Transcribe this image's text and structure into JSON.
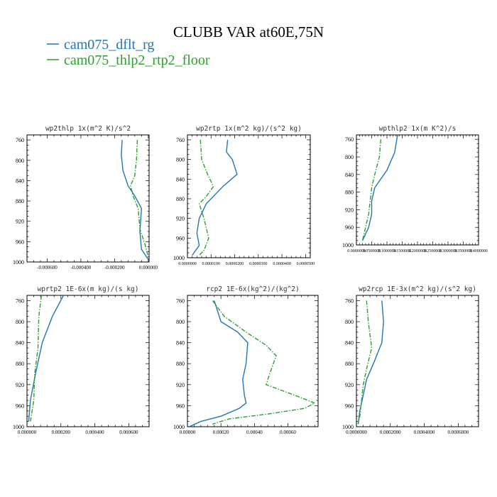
{
  "title": "CLUBB VAR at60E,75N",
  "legend": [
    {
      "name": "cam075_dflt_rg",
      "color": "#1f77b4",
      "style": "solid"
    },
    {
      "name": "cam075_thlp2_rtp2_floor",
      "color": "#2ca02c",
      "style": "dashdot"
    }
  ],
  "chart_data": [
    {
      "type": "line",
      "title": "wp2thlp   1x(m^2 K)/s^2",
      "ylim": [
        1000,
        750
      ],
      "yticks": [
        "760",
        "800",
        "840",
        "880",
        "920",
        "960",
        "1000"
      ],
      "xlim": [
        -0.00072,
        5e-06
      ],
      "xticks": [
        -0.0006,
        -0.0004,
        -0.0002,
        0.0
      ],
      "xtick_labels": [
        "-0.000600",
        "-0.000400",
        "-0.000200",
        "0.000000"
      ],
      "series": [
        {
          "name": "cam075_dflt_rg",
          "points": [
            [
              -0.000155,
              760
            ],
            [
              -0.00016,
              790
            ],
            [
              -0.00015,
              820
            ],
            [
              -0.00012,
              850
            ],
            [
              -8e-05,
              870
            ],
            [
              -4e-05,
              895
            ],
            [
              -5e-05,
              940
            ],
            [
              -4e-05,
              975
            ],
            [
              0.0,
              995
            ]
          ]
        },
        {
          "name": "cam075_thlp2_rtp2_floor",
          "points": [
            [
              -6.5e-05,
              760
            ],
            [
              -7e-05,
              800
            ],
            [
              -8e-05,
              830
            ],
            [
              -0.000105,
              850
            ],
            [
              -9e-05,
              870
            ],
            [
              -6e-05,
              895
            ],
            [
              -5e-05,
              935
            ],
            [
              -2e-05,
              965
            ],
            [
              0.0,
              990
            ]
          ]
        }
      ]
    },
    {
      "type": "line",
      "title": "wp2rtp   1x(m^2 kg)/(s^2 kg)",
      "ylim": [
        1000,
        750
      ],
      "yticks": [
        "760",
        "800",
        "840",
        "880",
        "920",
        "960",
        "1000"
      ],
      "xlim": [
        0.0,
        5.2e-05
      ],
      "xticks": [
        0.0,
        1e-05,
        2e-05,
        3e-05,
        4e-05,
        5e-05
      ],
      "xtick_labels": [
        "0.0000000",
        "0.0000100",
        "0.0000200",
        "0.0000300",
        "0.0000400",
        "0.0000500"
      ],
      "series": [
        {
          "name": "cam075_dflt_rg",
          "points": [
            [
              1.7e-05,
              760
            ],
            [
              1.65e-05,
              785
            ],
            [
              1.9e-05,
              800
            ],
            [
              2.1e-05,
              830
            ],
            [
              1.5e-05,
              855
            ],
            [
              8e-06,
              890
            ],
            [
              5e-06,
              920
            ],
            [
              4e-06,
              950
            ],
            [
              5e-06,
              975
            ],
            [
              2e-06,
              995
            ]
          ]
        },
        {
          "name": "cam075_thlp2_rtp2_floor",
          "points": [
            [
              5.5e-06,
              760
            ],
            [
              6e-06,
              800
            ],
            [
              8.5e-06,
              830
            ],
            [
              1.1e-05,
              855
            ],
            [
              8e-06,
              875
            ],
            [
              5e-06,
              890
            ],
            [
              7e-06,
              920
            ],
            [
              9e-06,
              960
            ],
            [
              7e-06,
              985
            ],
            [
              5e-06,
              995
            ]
          ]
        }
      ]
    },
    {
      "type": "line",
      "title": "wpthlp2   1x(m K^2)/s",
      "ylim": [
        1000,
        750
      ],
      "yticks": [
        "760",
        "800",
        "840",
        "880",
        "920",
        "960",
        "1000"
      ],
      "xlim": [
        0.0,
        0.4
      ],
      "xticks": [
        0.0,
        0.05,
        0.1,
        0.15,
        0.2,
        0.25,
        0.3,
        0.35,
        0.4
      ],
      "xtick_labels": [
        "0.0000000",
        "0.0500000",
        "0.1000000",
        "0.1500000",
        "0.2000000",
        "0.2500000",
        "0.3000000",
        "0.3500000",
        "0.4000000"
      ],
      "series": [
        {
          "name": "cam075_dflt_rg",
          "points": [
            [
              0.135,
              750
            ],
            [
              0.125,
              790
            ],
            [
              0.1,
              830
            ],
            [
              0.06,
              870
            ],
            [
              0.05,
              900
            ],
            [
              0.05,
              930
            ],
            [
              0.04,
              960
            ],
            [
              0.02,
              990
            ]
          ]
        },
        {
          "name": "cam075_thlp2_rtp2_floor",
          "points": [
            [
              0.08,
              760
            ],
            [
              0.075,
              800
            ],
            [
              0.06,
              840
            ],
            [
              0.05,
              870
            ],
            [
              0.045,
              900
            ],
            [
              0.04,
              930
            ],
            [
              0.03,
              960
            ],
            [
              0.02,
              990
            ]
          ]
        }
      ]
    },
    {
      "type": "line",
      "title": "wprtp2   1E-6x(m kg)/(s kg)",
      "ylim": [
        1000,
        750
      ],
      "yticks": [
        "760",
        "800",
        "840",
        "880",
        "920",
        "960",
        "1000"
      ],
      "xlim": [
        0.0,
        0.00072
      ],
      "xticks": [
        0.0,
        0.0002,
        0.0004,
        0.0006
      ],
      "xtick_labels": [
        "0.000000",
        "0.000200",
        "0.000400",
        "0.000600"
      ],
      "series": [
        {
          "name": "cam075_dflt_rg",
          "points": [
            [
              0.000215,
              750
            ],
            [
              0.00015,
              790
            ],
            [
              9e-05,
              840
            ],
            [
              5e-05,
              900
            ],
            [
              2e-05,
              950
            ],
            [
              1e-05,
              990
            ]
          ]
        },
        {
          "name": "cam075_thlp2_rtp2_floor",
          "points": [
            [
              8.5e-05,
              750
            ],
            [
              7e-05,
              790
            ],
            [
              6.5e-05,
              850
            ],
            [
              4.5e-05,
              900
            ],
            [
              4e-05,
              950
            ],
            [
              2e-05,
              990
            ]
          ]
        }
      ]
    },
    {
      "type": "line",
      "title": "rcp2   1E-6x(kg^2)/(kg^2)",
      "ylim": [
        1000,
        750
      ],
      "yticks": [
        "760",
        "800",
        "840",
        "880",
        "920",
        "960",
        "1000"
      ],
      "xlim": [
        0.0,
        0.00078
      ],
      "xticks": [
        0.0,
        0.0002,
        0.0004,
        0.0006
      ],
      "xtick_labels": [
        "0.00000",
        "0.00020",
        "0.00040",
        "0.00060"
      ],
      "series": [
        {
          "name": "cam075_dflt_rg",
          "points": [
            [
              0.00016,
              760
            ],
            [
              0.0002,
              800
            ],
            [
              0.0003,
              820
            ],
            [
              0.00036,
              840
            ],
            [
              0.00035,
              880
            ],
            [
              0.00033,
              910
            ],
            [
              0.00034,
              940
            ],
            [
              0.00035,
              955
            ],
            [
              0.00031,
              965
            ],
            [
              0.0002,
              980
            ],
            [
              8e-05,
              990
            ],
            [
              1e-05,
              1000
            ]
          ]
        },
        {
          "name": "cam075_thlp2_rtp2_floor",
          "points": [
            [
              0.00015,
              760
            ],
            [
              0.00022,
              790
            ],
            [
              0.00035,
              820
            ],
            [
              0.00047,
              845
            ],
            [
              0.00053,
              865
            ],
            [
              0.00049,
              900
            ],
            [
              0.00047,
              920
            ],
            [
              0.00064,
              940
            ],
            [
              0.00076,
              955
            ],
            [
              0.0007,
              965
            ],
            [
              0.0005,
              975
            ],
            [
              0.00025,
              985
            ],
            [
              0.00015,
              995
            ]
          ]
        }
      ]
    },
    {
      "type": "line",
      "title": "wp2rcp   1E-3x(m^2 kg)/(s^2 kg)",
      "ylim": [
        1000,
        750
      ],
      "yticks": [
        "760",
        "800",
        "840",
        "880",
        "920",
        "960",
        "1000"
      ],
      "xlim": [
        0.0,
        0.00072
      ],
      "xticks": [
        0.0,
        0.0002,
        0.0004,
        0.0006
      ],
      "xtick_labels": [
        "0.0000000",
        "0.0002000",
        "0.0004000",
        "0.0006000"
      ],
      "series": [
        {
          "name": "cam075_dflt_rg",
          "points": [
            [
              0.00015,
              760
            ],
            [
              0.00016,
              800
            ],
            [
              0.00015,
              840
            ],
            [
              0.0001,
              880
            ],
            [
              6e-05,
              910
            ],
            [
              4e-05,
              940
            ],
            [
              2e-05,
              970
            ],
            [
              1e-05,
              995
            ]
          ]
        },
        {
          "name": "cam075_thlp2_rtp2_floor",
          "points": [
            [
              6e-05,
              760
            ],
            [
              7e-05,
              800
            ],
            [
              9e-05,
              850
            ],
            [
              6e-05,
              890
            ],
            [
              4e-05,
              920
            ],
            [
              3e-05,
              950
            ],
            [
              2e-05,
              980
            ],
            [
              1e-05,
              995
            ]
          ]
        }
      ]
    }
  ]
}
